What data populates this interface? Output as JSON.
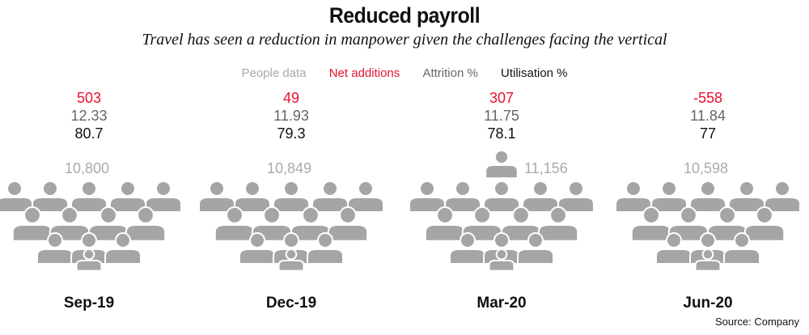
{
  "header": {
    "title": "Reduced payroll",
    "subtitle": "Travel has seen a reduction in manpower given the challenges facing the vertical"
  },
  "legend": {
    "people": "People data",
    "net": "Net additions",
    "attrition": "Attrition %",
    "utilisation": "Utilisation %"
  },
  "colors": {
    "people": "#aaaaaa",
    "net": "#e8112d",
    "attrition": "#666666",
    "utilisation": "#111111",
    "figure": "#a5a5a5"
  },
  "source": "Source: Company",
  "chart_data": {
    "type": "table",
    "categories": [
      "Sep-19",
      "Dec-19",
      "Mar-20",
      "Jun-20"
    ],
    "series": [
      {
        "name": "People data",
        "values": [
          10800,
          10849,
          11156,
          10598
        ],
        "labels": [
          "10,800",
          "10,849",
          "11,156",
          "10,598"
        ]
      },
      {
        "name": "Net additions",
        "values": [
          503,
          49,
          307,
          -558
        ],
        "labels": [
          "503",
          "49",
          "307",
          "-558"
        ]
      },
      {
        "name": "Attrition %",
        "values": [
          12.33,
          11.93,
          11.75,
          11.84
        ],
        "labels": [
          "12.33",
          "11.93",
          "11.75",
          "11.84"
        ]
      },
      {
        "name": "Utilisation %",
        "values": [
          80.7,
          79.3,
          78.1,
          77
        ],
        "labels": [
          "80.7",
          "79.3",
          "78.1",
          "77"
        ]
      }
    ]
  }
}
